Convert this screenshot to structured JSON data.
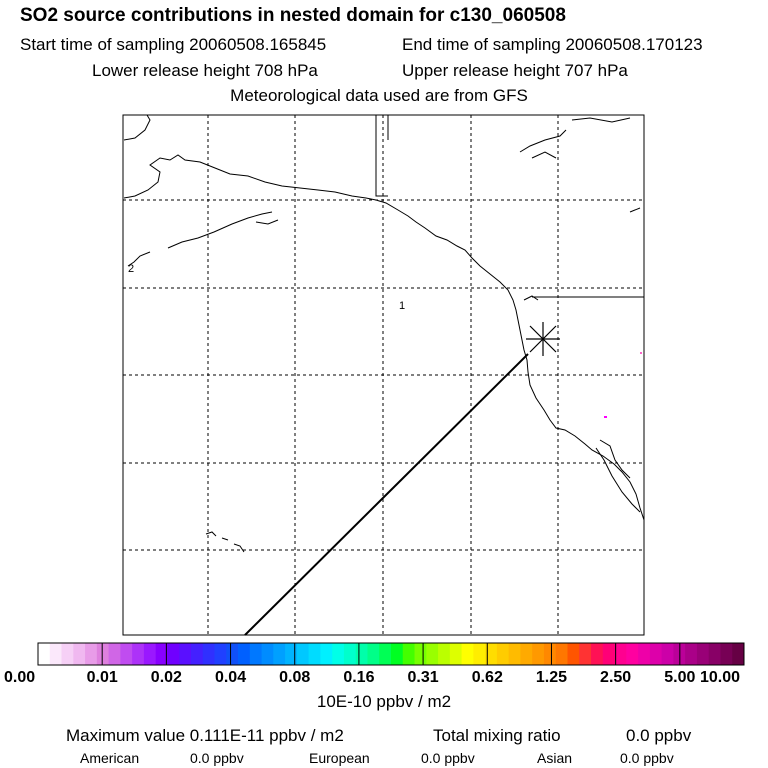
{
  "header": {
    "title": "SO2 source contributions in nested domain for c130_060508",
    "start_time": "Start time of sampling 20060508.165845",
    "end_time": "End time of sampling 20060508.170123",
    "lower_release": "Lower release height  708 hPa",
    "upper_release": "Upper release height  707 hPa",
    "met_data": "Meteorological data used are from GFS"
  },
  "map": {
    "labels": [
      "1",
      "2"
    ],
    "source_marker": "x-marker",
    "grid": true
  },
  "colorbar": {
    "tick_labels": [
      "0.00",
      "0.01",
      "0.02",
      "0.04",
      "0.08",
      "0.16",
      "0.31",
      "0.62",
      "1.25",
      "2.50",
      "5.00",
      "10.00"
    ],
    "colors": [
      "#ffffff",
      "#fbe8fb",
      "#f6d0f6",
      "#f0b8f0",
      "#e89ce8",
      "#de80de",
      "#d066e6",
      "#c04cf0",
      "#ad32f8",
      "#9a18ff",
      "#8800ff",
      "#7000ff",
      "#5a10ff",
      "#4420ff",
      "#3030ff",
      "#2040ff",
      "#1050f8",
      "#0060ff",
      "#0078ff",
      "#008cff",
      "#00a0ff",
      "#00b4ff",
      "#00c8ff",
      "#00dcff",
      "#00f0ff",
      "#00ffe8",
      "#00ffcc",
      "#00ffaa",
      "#00ff88",
      "#00ff55",
      "#00ff22",
      "#44ff00",
      "#77ff00",
      "#99ff00",
      "#bbff00",
      "#ddff00",
      "#ffff00",
      "#ffee00",
      "#ffdd00",
      "#ffcc00",
      "#ffbb00",
      "#ffaa00",
      "#ff9900",
      "#ff8800",
      "#ff7700",
      "#ff5500",
      "#ff3333",
      "#ff1155",
      "#ff0077",
      "#ff0090",
      "#ff00a0",
      "#ee00a8",
      "#dd00aa",
      "#cc00a8",
      "#bb0099",
      "#aa0088",
      "#990077",
      "#880066",
      "#770055",
      "#660044"
    ],
    "units": "10E-10 ppbv / m2"
  },
  "summary": {
    "max_value": "Maximum value  0.111E-11 ppbv / m2",
    "total_mixing_label": "Total mixing ratio",
    "total_mixing_value": "0.0 ppbv",
    "american_label": "American",
    "american_value": "0.0 ppbv",
    "european_label": "European",
    "european_value": "0.0 ppbv",
    "asian_label": "Asian",
    "asian_value": "0.0 ppbv"
  }
}
